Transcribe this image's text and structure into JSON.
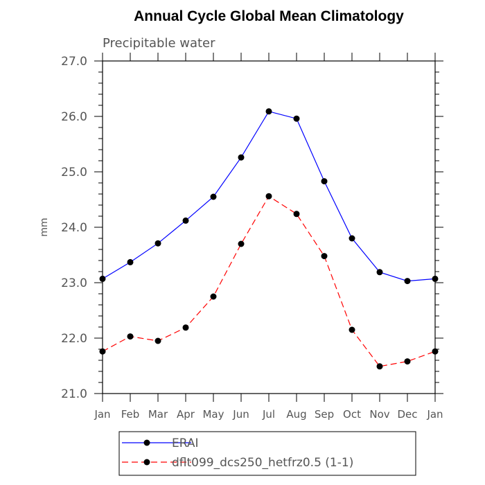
{
  "chart_data": {
    "type": "line",
    "title": "Annual Cycle Global Mean Climatology",
    "subtitle": "Precipitable water",
    "xlabel": "",
    "ylabel": "mm",
    "categories": [
      "Jan",
      "Feb",
      "Mar",
      "Apr",
      "May",
      "Jun",
      "Jul",
      "Aug",
      "Sep",
      "Oct",
      "Nov",
      "Dec",
      "Jan"
    ],
    "ylim": [
      21.0,
      27.0
    ],
    "yticks": [
      "21.0",
      "22.0",
      "23.0",
      "24.0",
      "25.0",
      "26.0",
      "27.0"
    ],
    "grid": false,
    "legend_position": "bottom-left",
    "series": [
      {
        "name": "ERAI",
        "color": "#0000ff",
        "dash": "solid",
        "values": [
          23.07,
          23.37,
          23.71,
          24.12,
          24.55,
          25.26,
          26.09,
          25.96,
          24.83,
          23.8,
          23.19,
          23.03,
          23.07
        ]
      },
      {
        "name": "dflt099_dcs250_hetfrz0.5 (1-1)",
        "color": "#ff0000",
        "dash": "dashed",
        "values": [
          21.76,
          22.03,
          21.95,
          22.19,
          22.75,
          23.7,
          24.56,
          24.24,
          23.48,
          22.15,
          21.49,
          21.58,
          21.76
        ]
      }
    ]
  }
}
